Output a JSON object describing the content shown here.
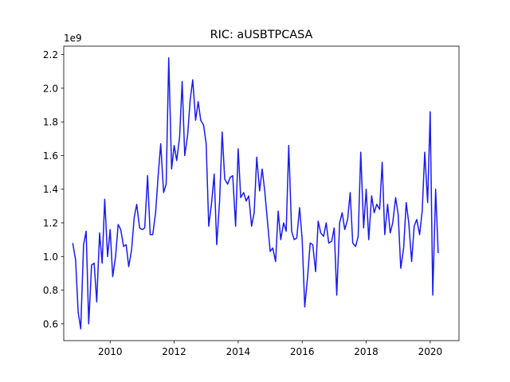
{
  "chart_data": {
    "type": "line",
    "title": "RIC: aUSBTPCASA",
    "xlabel": "",
    "ylabel": "",
    "y_offset_label": "1e9",
    "xlim": [
      2008.55,
      2020.9
    ],
    "ylim": [
      0.5,
      2.25
    ],
    "x_ticks": [
      2010,
      2012,
      2014,
      2016,
      2018,
      2020
    ],
    "x_tick_labels": [
      "2010",
      "2012",
      "2014",
      "2016",
      "2018",
      "2020"
    ],
    "y_ticks": [
      0.6,
      0.8,
      1.0,
      1.2,
      1.4,
      1.6,
      1.8,
      2.0,
      2.2
    ],
    "y_tick_labels": [
      "0.6",
      "0.8",
      "1.0",
      "1.2",
      "1.4",
      "1.6",
      "1.8",
      "2.0",
      "2.2"
    ],
    "grid": false,
    "line_color": "#1a1aee",
    "series": [
      {
        "x": [
          2008.83,
          2008.92,
          2009.0,
          2009.08,
          2009.17,
          2009.25,
          2009.33,
          2009.42,
          2009.5,
          2009.58,
          2009.67,
          2009.75,
          2009.83,
          2009.92,
          2010.0,
          2010.08,
          2010.17,
          2010.25,
          2010.33,
          2010.42,
          2010.5,
          2010.58,
          2010.67,
          2010.75,
          2010.83,
          2010.92,
          2011.0,
          2011.08,
          2011.17,
          2011.25,
          2011.33,
          2011.42,
          2011.5,
          2011.58,
          2011.67,
          2011.75,
          2011.83,
          2011.92,
          2012.0,
          2012.08,
          2012.17,
          2012.25,
          2012.33,
          2012.42,
          2012.5,
          2012.58,
          2012.67,
          2012.75,
          2012.83,
          2012.92,
          2013.0,
          2013.08,
          2013.17,
          2013.25,
          2013.33,
          2013.42,
          2013.5,
          2013.58,
          2013.67,
          2013.75,
          2013.83,
          2013.92,
          2014.0,
          2014.08,
          2014.17,
          2014.25,
          2014.33,
          2014.42,
          2014.5,
          2014.58,
          2014.67,
          2014.75,
          2014.83,
          2014.92,
          2015.0,
          2015.08,
          2015.17,
          2015.25,
          2015.33,
          2015.42,
          2015.5,
          2015.58,
          2015.67,
          2015.75,
          2015.83,
          2015.92,
          2016.0,
          2016.08,
          2016.17,
          2016.25,
          2016.33,
          2016.42,
          2016.5,
          2016.58,
          2016.67,
          2016.75,
          2016.83,
          2016.92,
          2017.0,
          2017.08,
          2017.17,
          2017.25,
          2017.33,
          2017.42,
          2017.5,
          2017.58,
          2017.67,
          2017.75,
          2017.83,
          2017.92,
          2018.0,
          2018.08,
          2018.17,
          2018.25,
          2018.33,
          2018.42,
          2018.5,
          2018.58,
          2018.67,
          2018.75,
          2018.83,
          2018.92,
          2019.0,
          2019.08,
          2019.17,
          2019.25,
          2019.33,
          2019.42,
          2019.5,
          2019.58,
          2019.67,
          2019.75,
          2019.83,
          2019.92,
          2020.0,
          2020.08,
          2020.17,
          2020.25
        ],
        "values": [
          1.08,
          0.98,
          0.67,
          0.57,
          1.07,
          1.15,
          0.6,
          0.95,
          0.96,
          0.73,
          1.14,
          0.96,
          1.34,
          1.0,
          1.16,
          0.88,
          1.0,
          1.19,
          1.16,
          1.06,
          1.07,
          0.94,
          1.04,
          1.23,
          1.31,
          1.17,
          1.16,
          1.17,
          1.48,
          1.13,
          1.13,
          1.26,
          1.48,
          1.67,
          1.38,
          1.43,
          2.18,
          1.52,
          1.66,
          1.57,
          1.71,
          2.04,
          1.6,
          1.72,
          1.93,
          2.05,
          1.81,
          1.92,
          1.81,
          1.78,
          1.67,
          1.18,
          1.32,
          1.49,
          1.07,
          1.33,
          1.74,
          1.46,
          1.43,
          1.47,
          1.48,
          1.18,
          1.64,
          1.35,
          1.38,
          1.33,
          1.36,
          1.18,
          1.26,
          1.59,
          1.39,
          1.52,
          1.39,
          1.2,
          1.03,
          1.05,
          0.97,
          1.27,
          1.1,
          1.2,
          1.15,
          1.66,
          1.15,
          1.1,
          1.11,
          1.29,
          1.1,
          0.7,
          0.88,
          1.08,
          1.07,
          0.91,
          1.21,
          1.14,
          1.12,
          1.2,
          1.08,
          1.09,
          1.17,
          0.77,
          1.2,
          1.26,
          1.16,
          1.22,
          1.38,
          1.08,
          1.06,
          1.12,
          1.62,
          1.17,
          1.4,
          1.1,
          1.36,
          1.26,
          1.31,
          1.28,
          1.56,
          1.13,
          1.31,
          1.14,
          1.2,
          1.35,
          1.25,
          0.93,
          1.05,
          1.32,
          1.2,
          0.97,
          1.18,
          1.22,
          1.13,
          1.27,
          1.62,
          1.32,
          1.86,
          0.77,
          1.4,
          1.02
        ]
      }
    ]
  }
}
